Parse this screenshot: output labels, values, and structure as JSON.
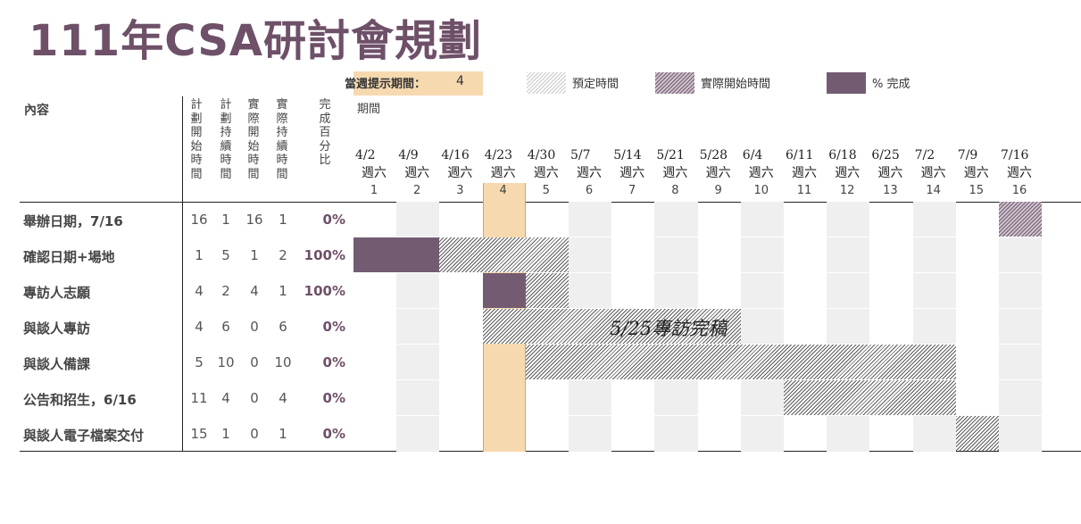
{
  "title": "111年CSA研討會規劃",
  "legend": {
    "current_week_label": "當週提示期間：",
    "current_week_value": "4",
    "planned_label": "預定時間",
    "actual_label": "實際開始時間",
    "percent_label": "% 完成"
  },
  "headers": {
    "content": "內容",
    "period": "期間",
    "plan_start": "計劃開始時間",
    "plan_duration": "計劃持續時間",
    "actual_start": "實際開始時間",
    "actual_duration": "實際持續時間",
    "percent": "完成百分比"
  },
  "weeks": [
    {
      "date": "4/2",
      "day": "週六",
      "num": "1"
    },
    {
      "date": "4/9",
      "day": "週六",
      "num": "2"
    },
    {
      "date": "4/16",
      "day": "週六",
      "num": "3"
    },
    {
      "date": "4/23",
      "day": "週六",
      "num": "4"
    },
    {
      "date": "4/30",
      "day": "週六",
      "num": "5"
    },
    {
      "date": "5/7",
      "day": "週六",
      "num": "6"
    },
    {
      "date": "5/14",
      "day": "週六",
      "num": "7"
    },
    {
      "date": "5/21",
      "day": "週六",
      "num": "8"
    },
    {
      "date": "5/28",
      "day": "週六",
      "num": "9"
    },
    {
      "date": "6/4",
      "day": "週六",
      "num": "10"
    },
    {
      "date": "6/11",
      "day": "週六",
      "num": "11"
    },
    {
      "date": "6/18",
      "day": "週六",
      "num": "12"
    },
    {
      "date": "6/25",
      "day": "週六",
      "num": "13"
    },
    {
      "date": "7/2",
      "day": "週六",
      "num": "14"
    },
    {
      "date": "7/9",
      "day": "週六",
      "num": "15"
    },
    {
      "date": "7/16",
      "day": "週六",
      "num": "16"
    }
  ],
  "tasks": [
    {
      "name": "舉辦日期，7/16",
      "plan_start": "16",
      "plan_duration": "1",
      "actual_start": "16",
      "actual_duration": "1",
      "percent": "0%"
    },
    {
      "name": "確認日期+場地",
      "plan_start": "1",
      "plan_duration": "5",
      "actual_start": "1",
      "actual_duration": "2",
      "percent": "100%"
    },
    {
      "name": "專訪人志願",
      "plan_start": "4",
      "plan_duration": "2",
      "actual_start": "4",
      "actual_duration": "1",
      "percent": "100%"
    },
    {
      "name": "與談人專訪",
      "plan_start": "4",
      "plan_duration": "6",
      "actual_start": "0",
      "actual_duration": "6",
      "percent": "0%"
    },
    {
      "name": "與談人備課",
      "plan_start": "5",
      "plan_duration": "10",
      "actual_start": "0",
      "actual_duration": "10",
      "percent": "0%"
    },
    {
      "name": "公告和招生，6/16",
      "plan_start": "11",
      "plan_duration": "4",
      "actual_start": "0",
      "actual_duration": "4",
      "percent": "0%"
    },
    {
      "name": "與談人電子檔案交付",
      "plan_start": "15",
      "plan_duration": "1",
      "actual_start": "0",
      "actual_duration": "1",
      "percent": "0%"
    }
  ],
  "bars": [
    {
      "row": 0,
      "start": 16,
      "len": 1,
      "style": "actual"
    },
    {
      "row": 1,
      "start": 1,
      "len": 2,
      "style": "complete"
    },
    {
      "row": 1,
      "start": 3,
      "len": 3,
      "style": "planned"
    },
    {
      "row": 2,
      "start": 4,
      "len": 1,
      "style": "complete"
    },
    {
      "row": 2,
      "start": 5,
      "len": 1,
      "style": "planned"
    },
    {
      "row": 3,
      "start": 4,
      "len": 6,
      "style": "planned"
    },
    {
      "row": 4,
      "start": 5,
      "len": 10,
      "style": "planned"
    },
    {
      "row": 5,
      "start": 11,
      "len": 4,
      "style": "planned"
    },
    {
      "row": 6,
      "start": 15,
      "len": 1,
      "style": "planned"
    }
  ],
  "annotation": "5/25專訪完稿",
  "colors": {
    "accent": "#735c72",
    "title": "#6e5068",
    "highlight": "#f7d9b0",
    "gray_column": "#efefef"
  }
}
